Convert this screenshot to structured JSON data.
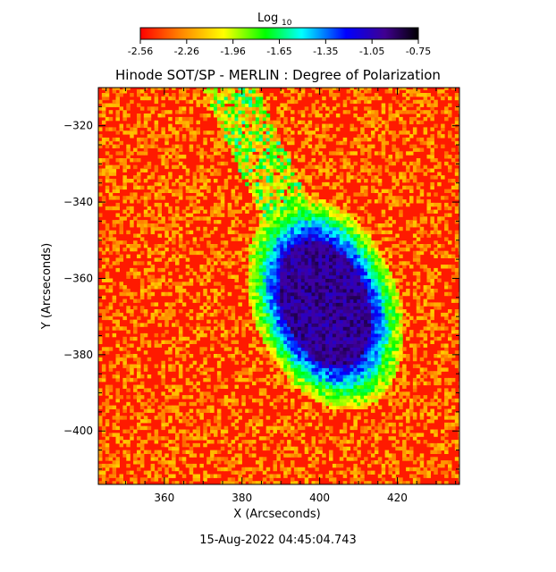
{
  "chart_data": {
    "type": "heatmap",
    "title": "Hinode SOT/SP - MERLIN : Degree of Polarization",
    "xlabel": "X (Arcseconds)",
    "ylabel": "Y (Arcseconds)",
    "xlim": [
      343,
      436
    ],
    "ylim": [
      -414,
      -310
    ],
    "x_ticks": [
      360,
      380,
      400,
      420
    ],
    "y_ticks": [
      -320,
      -340,
      -360,
      -380,
      -400
    ],
    "colorbar": {
      "label_base": "Log",
      "label_sub": "10",
      "range": [
        -2.56,
        -0.75
      ],
      "ticks": [
        "-2.56",
        "-2.26",
        "-1.96",
        "-1.65",
        "-1.35",
        "-1.05",
        "-0.75"
      ],
      "colormap": [
        "#ff0000",
        "#ff8000",
        "#ffff00",
        "#00ff00",
        "#00ffff",
        "#0000ff",
        "#4000a0",
        "#000000"
      ]
    },
    "features": {
      "sunspot_center": [
        401,
        -367
      ],
      "background_level": -2.5,
      "umbra_level": -1.0,
      "penumbra_level": -1.6,
      "plage_band_level": -2.0
    },
    "timestamp": "15-Aug-2022 04:45:04.743"
  }
}
